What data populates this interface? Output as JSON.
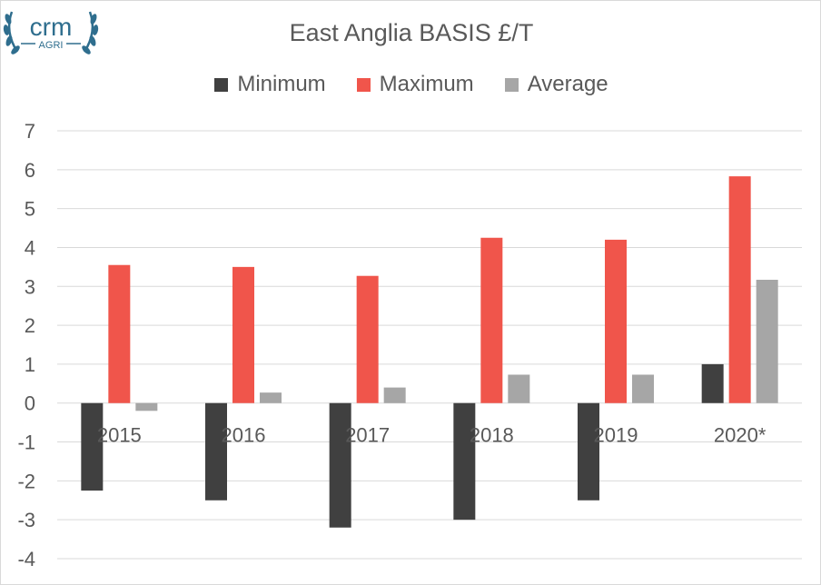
{
  "logo": {
    "text": "crm",
    "subtext": "AGRI",
    "color": "#2f6e8e"
  },
  "chart_data": {
    "type": "bar",
    "title": "East Anglia BASIS £/T",
    "categories": [
      "2015",
      "2016",
      "2017",
      "2018",
      "2019",
      "2020*"
    ],
    "series": [
      {
        "name": "Minimum",
        "color": "#404040",
        "values": [
          -2.25,
          -2.5,
          -3.2,
          -3.0,
          -2.5,
          1.0
        ]
      },
      {
        "name": "Maximum",
        "color": "#f0554b",
        "values": [
          3.55,
          3.5,
          3.27,
          4.25,
          4.2,
          5.83
        ]
      },
      {
        "name": "Average",
        "color": "#a6a6a6",
        "values": [
          -0.2,
          0.27,
          0.4,
          0.73,
          0.73,
          3.17
        ]
      }
    ],
    "ylim": [
      -4,
      7
    ],
    "yticks": [
      "-4",
      "-3",
      "-2",
      "-1",
      "0",
      "1",
      "2",
      "3",
      "4",
      "5",
      "6",
      "7"
    ],
    "grid": true,
    "legend": "top"
  }
}
